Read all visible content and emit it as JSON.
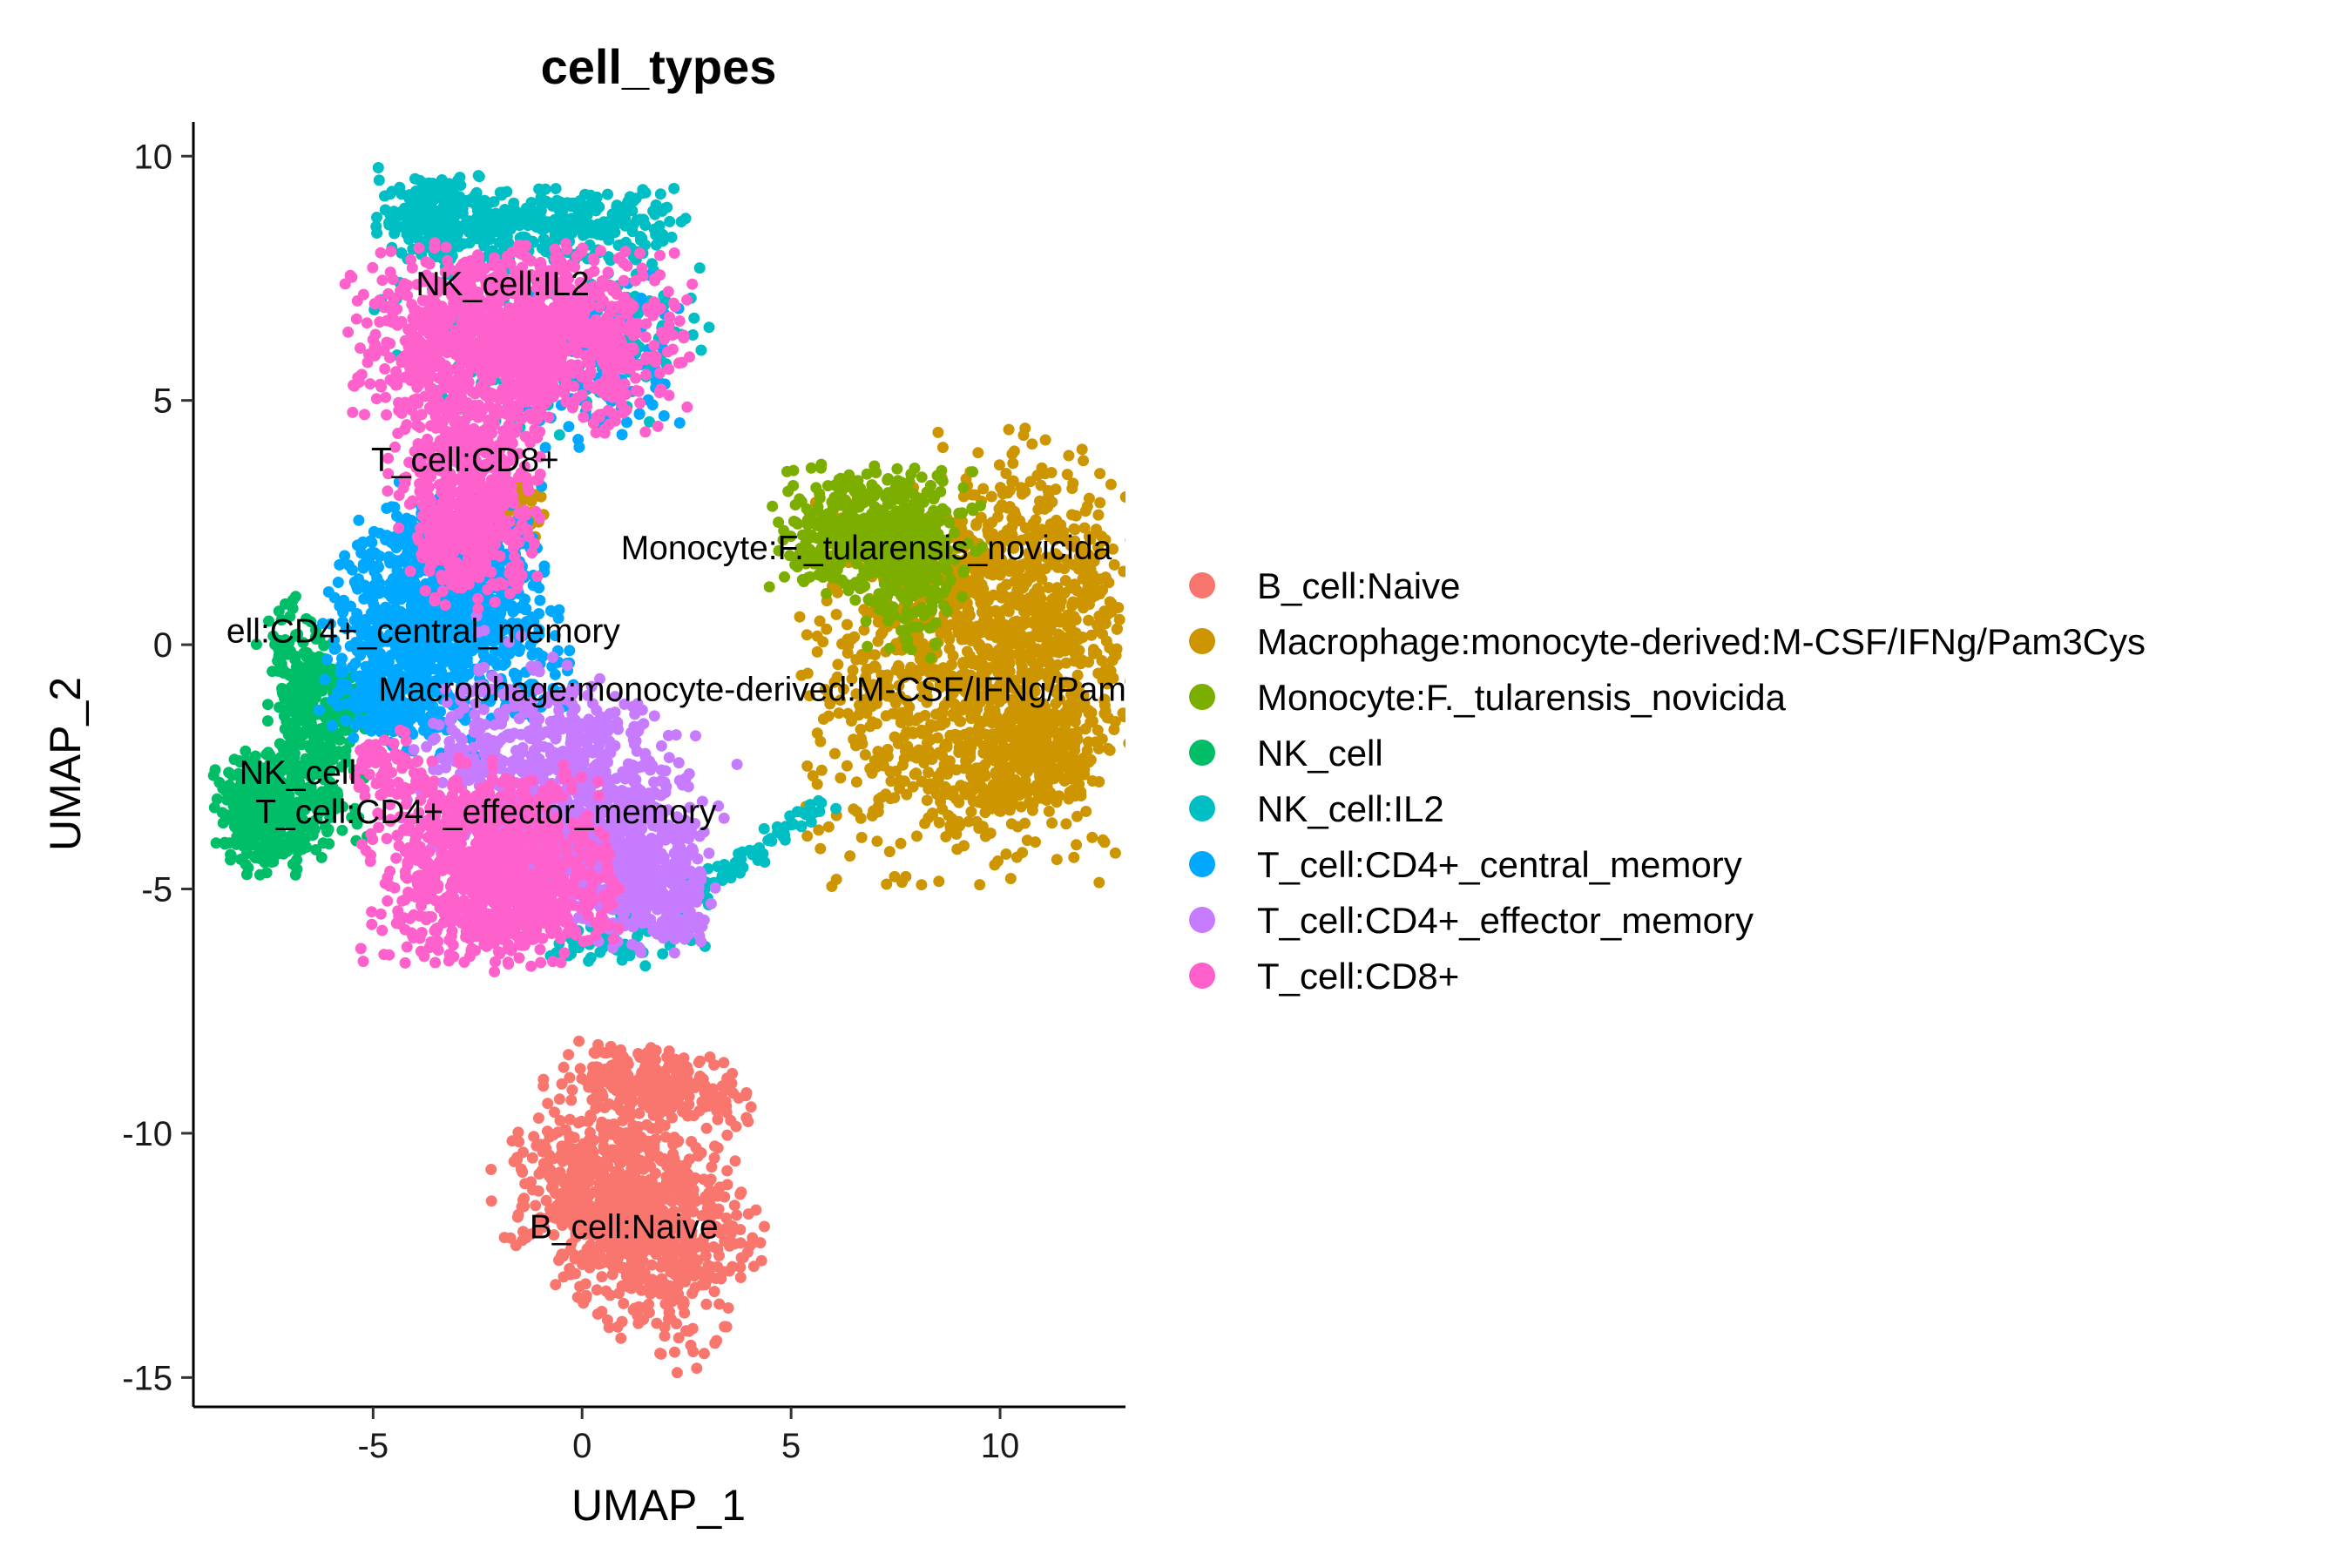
{
  "chart_data": {
    "type": "scatter",
    "title": "cell_types",
    "xlabel": "UMAP_1",
    "ylabel": "UMAP_2",
    "xlim": [
      -9.3,
      13
    ],
    "ylim": [
      -15.6,
      10.7
    ],
    "xticks": [
      -5,
      0,
      5,
      10
    ],
    "yticks": [
      10,
      5,
      0,
      -5,
      -10,
      -15
    ],
    "grid": false,
    "legend_position": "right",
    "series": [
      {
        "name": "B_cell:Naive",
        "color": "#F8766D",
        "label": "B_cell:Naive",
        "label_at": [
          1.0,
          -11.9
        ],
        "clusters": [
          {
            "cx": 1.2,
            "cy": -11.6,
            "sx": 1.05,
            "sy": 1.5,
            "rot": 55,
            "n": 950
          },
          {
            "cx": 1.9,
            "cy": -9.0,
            "sx": 0.35,
            "sy": 1.0,
            "rot": 80,
            "n": 260
          }
        ]
      },
      {
        "name": "Macrophage:monocyte-derived:M-CSF/IFNg/Pam3Cys",
        "color": "#CD9600",
        "label": "Macrophage:monocyte-derived:M-CSF/IFNg/Pam3Cys",
        "label_at": [
          5.0,
          -0.9
        ],
        "clusters": [
          {
            "cx": 9.2,
            "cy": -0.8,
            "sx": 1.9,
            "sy": 1.9,
            "rot": 0,
            "n": 1100
          },
          {
            "cx": 10.8,
            "cy": 1.6,
            "sx": 1.1,
            "sy": 1.3,
            "rot": 0,
            "n": 350
          },
          {
            "cx": 10.9,
            "cy": -2.4,
            "sx": 0.7,
            "sy": 0.5,
            "rot": 0,
            "n": 200
          },
          {
            "cx": -1.4,
            "cy": 2.8,
            "sx": 0.3,
            "sy": 0.3,
            "rot": 0,
            "n": 30
          }
        ]
      },
      {
        "name": "Monocyte:F._tularensis_novicida",
        "color": "#7CAE00",
        "label": "Monocyte:F._tularensis_novicida",
        "label_at": [
          6.8,
          2.0
        ],
        "clusters": [
          {
            "cx": 7.0,
            "cy": 2.3,
            "sx": 1.2,
            "sy": 0.65,
            "rot": 0,
            "n": 520
          },
          {
            "cx": 7.8,
            "cy": 1.2,
            "sx": 0.5,
            "sy": 0.7,
            "rot": 0,
            "n": 140
          }
        ]
      },
      {
        "name": "NK_cell",
        "color": "#00BE67",
        "label": "NK_cell",
        "label_at": [
          -6.8,
          -2.6
        ],
        "clusters": [
          {
            "cx": -7.5,
            "cy": -3.4,
            "sx": 0.6,
            "sy": 0.6,
            "rot": 0,
            "n": 380
          },
          {
            "cx": -6.5,
            "cy": -1.6,
            "sx": 0.45,
            "sy": 1.2,
            "rot": 15,
            "n": 320
          },
          {
            "cx": -5.4,
            "cy": -1.2,
            "sx": 0.35,
            "sy": 0.3,
            "rot": 0,
            "n": 60
          }
        ]
      },
      {
        "name": "NK_cell:IL2",
        "color": "#00BFC4",
        "label": "NK_cell:IL2",
        "label_at": [
          -1.9,
          7.4
        ],
        "clusters": [
          {
            "cx": -3.4,
            "cy": 8.8,
            "sx": 0.7,
            "sy": 0.45,
            "rot": 0,
            "n": 240
          },
          {
            "cx": -0.4,
            "cy": 8.6,
            "sx": 1.4,
            "sy": 0.35,
            "rot": 0,
            "n": 260
          },
          {
            "cx": 0.5,
            "cy": 6.3,
            "sx": 1.2,
            "sy": 1.0,
            "rot": 0,
            "n": 120
          },
          {
            "cx": -1.9,
            "cy": 6.6,
            "sx": 1.5,
            "sy": 0.9,
            "rot": 0,
            "n": 120
          },
          {
            "cx": 1.0,
            "cy": -6.0,
            "sx": 0.9,
            "sy": 0.3,
            "rot": 0,
            "n": 70
          }
        ],
        "trail": [
          [
            5.8,
            -3.2
          ],
          [
            2.4,
            -5.3
          ],
          [
            80
          ]
        ]
      },
      {
        "name": "T_cell:CD4+_central_memory",
        "color": "#00A9FF",
        "label": "ell:CD4+_central_memory",
        "label_at": [
          -3.8,
          0.3
        ],
        "clusters": [
          {
            "cx": -3.9,
            "cy": 0.5,
            "sx": 1.05,
            "sy": 1.3,
            "rot": -15,
            "n": 820
          },
          {
            "cx": -2.6,
            "cy": 1.5,
            "sx": 0.8,
            "sy": 0.8,
            "rot": 0,
            "n": 220
          },
          {
            "cx": -4.6,
            "cy": -0.9,
            "sx": 0.5,
            "sy": 0.5,
            "rot": 0,
            "n": 120
          },
          {
            "cx": -1.4,
            "cy": -0.2,
            "sx": 0.6,
            "sy": 0.8,
            "rot": 0,
            "n": 110
          },
          {
            "cx": 0.4,
            "cy": 5.7,
            "sx": 1.0,
            "sy": 0.9,
            "rot": 0,
            "n": 120
          }
        ]
      },
      {
        "name": "T_cell:CD4+_effector_memory",
        "color": "#C77CFF",
        "label": "T_cell:CD4+_effector_memory",
        "label_at": [
          -2.3,
          -3.4
        ],
        "clusters": [
          {
            "cx": -0.4,
            "cy": -3.2,
            "sx": 1.7,
            "sy": 1.2,
            "rot": -25,
            "n": 1050
          },
          {
            "cx": 1.3,
            "cy": -4.6,
            "sx": 0.9,
            "sy": 0.7,
            "rot": -20,
            "n": 300
          },
          {
            "cx": 2.4,
            "cy": -5.8,
            "sx": 0.3,
            "sy": 0.2,
            "rot": 0,
            "n": 40
          }
        ]
      },
      {
        "name": "T_cell:CD8+",
        "color": "#FF61CC",
        "label": "T_cell:CD8+",
        "label_at": [
          -2.8,
          3.8
        ],
        "clusters": [
          {
            "cx": -1.5,
            "cy": 6.3,
            "sx": 1.9,
            "sy": 0.9,
            "rot": 0,
            "n": 1250
          },
          {
            "cx": -2.8,
            "cy": 3.6,
            "sx": 0.85,
            "sy": 0.85,
            "rot": 0,
            "n": 420
          },
          {
            "cx": -2.6,
            "cy": 2.0,
            "sx": 0.7,
            "sy": 0.6,
            "rot": 0,
            "n": 220
          },
          {
            "cx": -2.3,
            "cy": -4.5,
            "sx": 1.4,
            "sy": 1.0,
            "rot": 0,
            "n": 900
          },
          {
            "cx": -4.7,
            "cy": -2.5,
            "sx": 0.35,
            "sy": 0.4,
            "rot": 0,
            "n": 60
          },
          {
            "cx": -1.0,
            "cy": -5.4,
            "sx": 0.9,
            "sy": 0.35,
            "rot": 0,
            "n": 150
          }
        ]
      }
    ]
  }
}
